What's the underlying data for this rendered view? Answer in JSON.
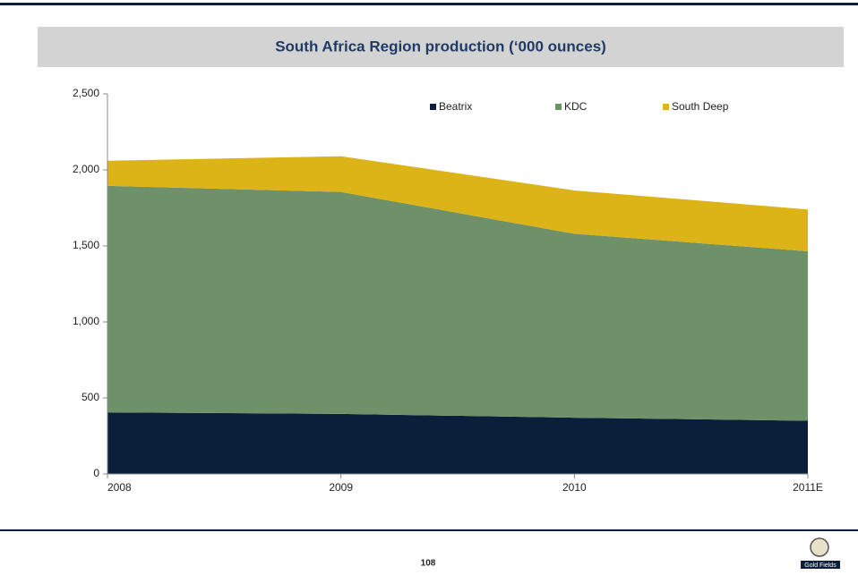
{
  "chart_data": {
    "type": "stacked_area",
    "title": "South Africa Region production (‘000 ounces)",
    "categories": [
      "2008",
      "2009",
      "2010",
      "2011E"
    ],
    "series": [
      {
        "name": "Beatrix",
        "color": "#0b1f3a",
        "values": [
          405,
          395,
          370,
          350
        ]
      },
      {
        "name": "KDC",
        "color": "#6f9169",
        "values": [
          1490,
          1460,
          1210,
          1115
        ]
      },
      {
        "name": "South Deep",
        "color": "#dcb417",
        "values": [
          165,
          235,
          285,
          275
        ]
      }
    ],
    "ylim": [
      0,
      2500
    ],
    "yticks": [
      0,
      500,
      {
        "value": 1000,
        "label": "1,000"
      },
      {
        "value": 1500,
        "label": "1,500"
      },
      {
        "value": 2000,
        "label": "2,000"
      },
      {
        "value": 2500,
        "label": "2,500"
      }
    ],
    "legend": "top-right"
  },
  "footer": {
    "page_number": "108",
    "logo_text": "Gold Fields"
  }
}
